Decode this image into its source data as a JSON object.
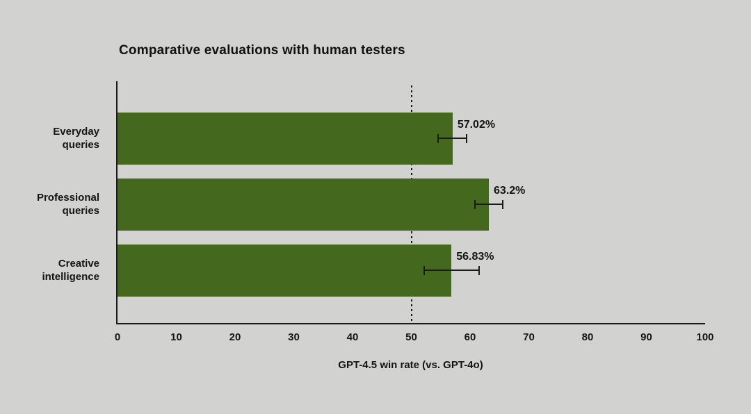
{
  "chart_data": {
    "type": "bar",
    "orientation": "horizontal",
    "title": "Comparative evaluations with human testers",
    "categories": [
      "Everyday queries",
      "Professional queries",
      "Creative intelligence"
    ],
    "category_lines": [
      [
        "Everyday",
        "queries"
      ],
      [
        "Professional",
        "queries"
      ],
      [
        "Creative",
        "intelligence"
      ]
    ],
    "values": [
      57.02,
      63.2,
      56.83
    ],
    "display_values": [
      "57.02%",
      "63.2%",
      "56.83%"
    ],
    "error": [
      2.55,
      2.5,
      4.8
    ],
    "xlabel": "GPT-4.5 win rate (vs. GPT-4o)",
    "xlim": [
      0,
      100
    ],
    "xticks": [
      0,
      10,
      20,
      30,
      40,
      50,
      60,
      70,
      80,
      90,
      100
    ],
    "reference_line_x": 50,
    "bar_color": "#44691e",
    "background_color": "#d2d2d0",
    "ink_color": "#1b1b1b",
    "grid": "off",
    "legend": "none"
  }
}
